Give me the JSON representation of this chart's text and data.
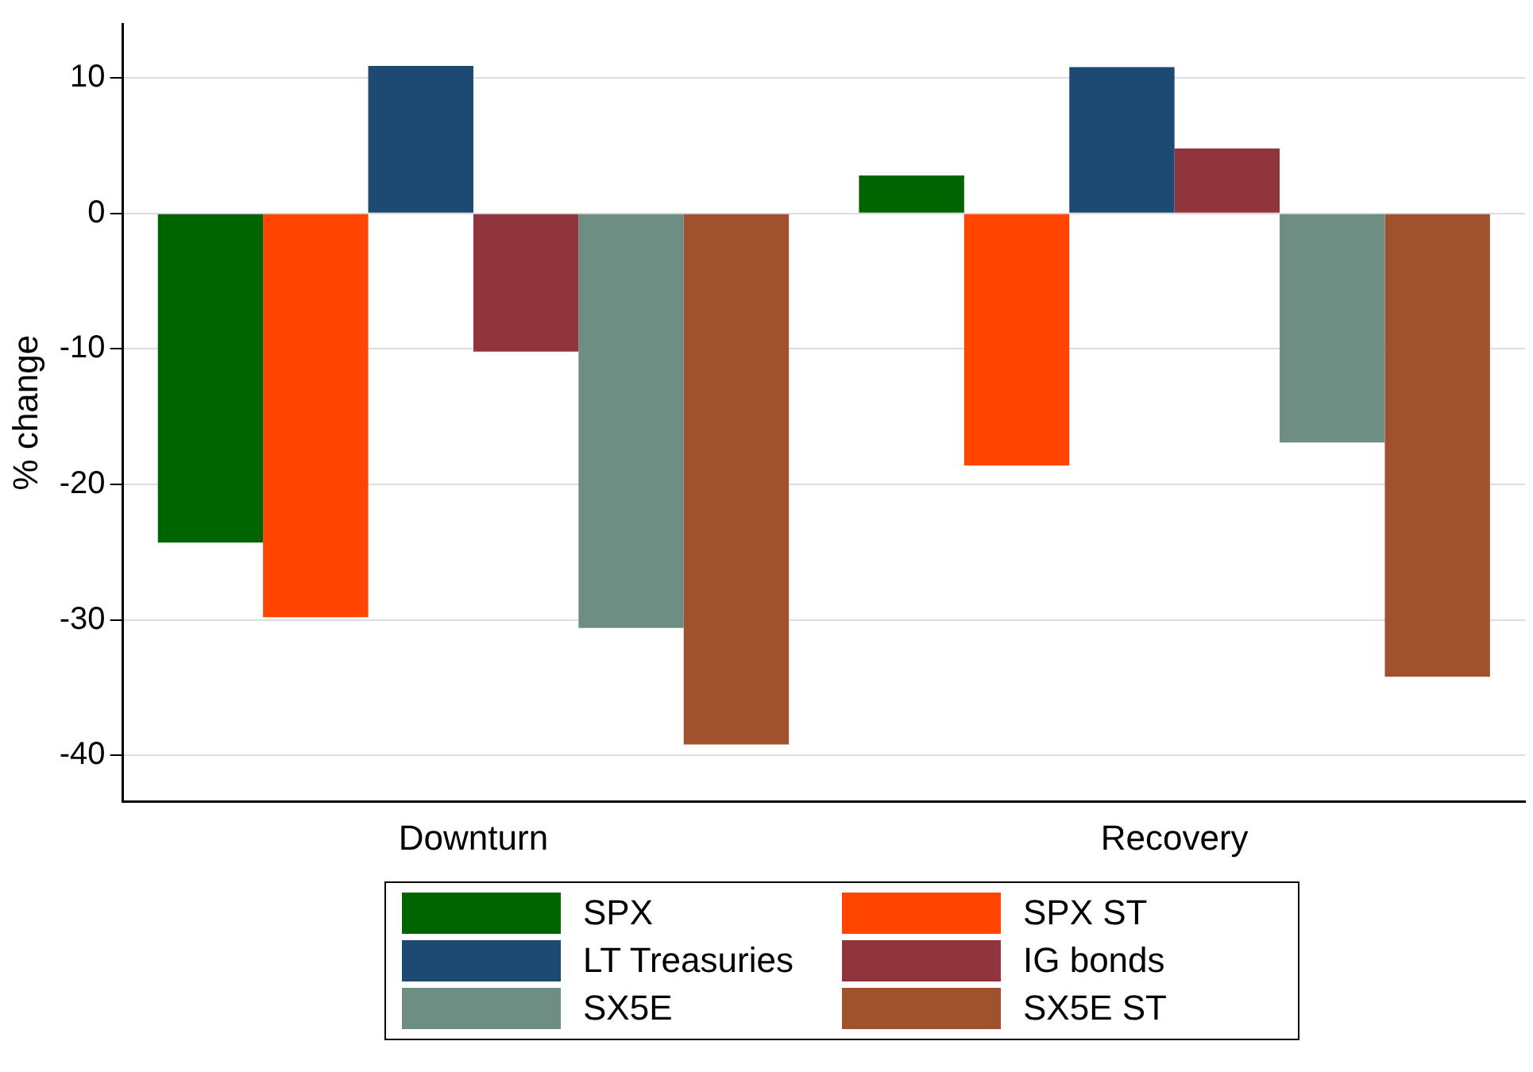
{
  "chart_data": {
    "type": "bar",
    "ylabel": "% change",
    "categories": [
      "Downturn",
      "Recovery"
    ],
    "series": [
      {
        "name": "SPX",
        "color": "#006400",
        "values": [
          -24.3,
          2.8
        ]
      },
      {
        "name": "SPX ST",
        "color": "#ff4500",
        "values": [
          -29.8,
          -18.6
        ]
      },
      {
        "name": "LT Treasuries",
        "color": "#1c4a73",
        "values": [
          10.9,
          10.8
        ]
      },
      {
        "name": "IG bonds",
        "color": "#90353b",
        "values": [
          -10.2,
          4.8
        ]
      },
      {
        "name": "SX5E",
        "color": "#6e8e84",
        "values": [
          -30.6,
          -16.9
        ]
      },
      {
        "name": "SX5E ST",
        "color": "#a0522d",
        "values": [
          -39.2,
          -34.2
        ]
      }
    ],
    "ylim": [
      -43.4,
      14
    ],
    "yticks": [
      -40,
      -30,
      -20,
      -10,
      0,
      10
    ],
    "grid": "y",
    "legend": "bottom"
  }
}
